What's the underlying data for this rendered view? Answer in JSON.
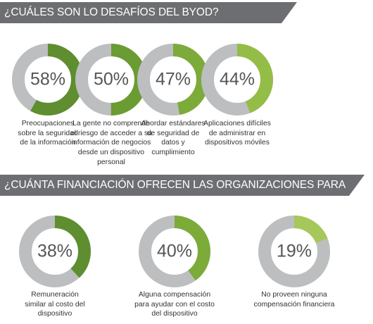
{
  "section1": {
    "title": "¿CUÁLES SON LO DESAFÍOS DEL BYOD?"
  },
  "section2": {
    "title": "¿CUÁNTA FINANCIACIÓN OFRECEN LAS ORGANIZACIONES PARA BYOD?"
  },
  "colors": {
    "bar": "#6d6e71",
    "track": "#bcbec0",
    "dark_green": "#5a8a2d",
    "light_green": "#8db83f",
    "lighter_green": "#a6c75a"
  },
  "chart_data": [
    {
      "type": "pie",
      "title": "¿CUÁLES SON LO DESAFÍOS DEL BYOD?",
      "items": [
        {
          "value": 58,
          "label": "58%",
          "caption": [
            "Preocupaciones",
            "sobre la seguridad",
            "de la información"
          ],
          "color": "#5e8e2f"
        },
        {
          "value": 50,
          "label": "50%",
          "caption": [
            "La gente no comprende",
            "el riesgo de acceder a su",
            "información de negocios",
            "desde un dispositivo",
            "personal"
          ],
          "color": "#6b9b33"
        },
        {
          "value": 47,
          "label": "47%",
          "caption": [
            "Abordar estándares",
            "de seguridad de",
            "datos y",
            "cumplimiento"
          ],
          "color": "#7cab3a"
        },
        {
          "value": 44,
          "label": "44%",
          "caption": [
            "Aplicaciones difíciles",
            "de administrar en",
            "dispositivos móviles"
          ],
          "color": "#93bd47"
        }
      ]
    },
    {
      "type": "pie",
      "title": "¿CUÁNTA FINANCIACIÓN OFRECEN LAS ORGANIZACIONES PARA BYOD?",
      "items": [
        {
          "value": 38,
          "label": "38%",
          "caption": [
            "Remuneración",
            "similar al costo del",
            "dispositivo"
          ],
          "color": "#5e8e2f"
        },
        {
          "value": 40,
          "label": "40%",
          "caption": [
            "Alguna compensación",
            "para ayudar con el costo",
            "del dispositivo"
          ],
          "color": "#7cab3a"
        },
        {
          "value": 19,
          "label": "19%",
          "caption": [
            "No proveen ninguna",
            "compensación financiera"
          ],
          "color": "#a6c75a"
        }
      ]
    }
  ]
}
